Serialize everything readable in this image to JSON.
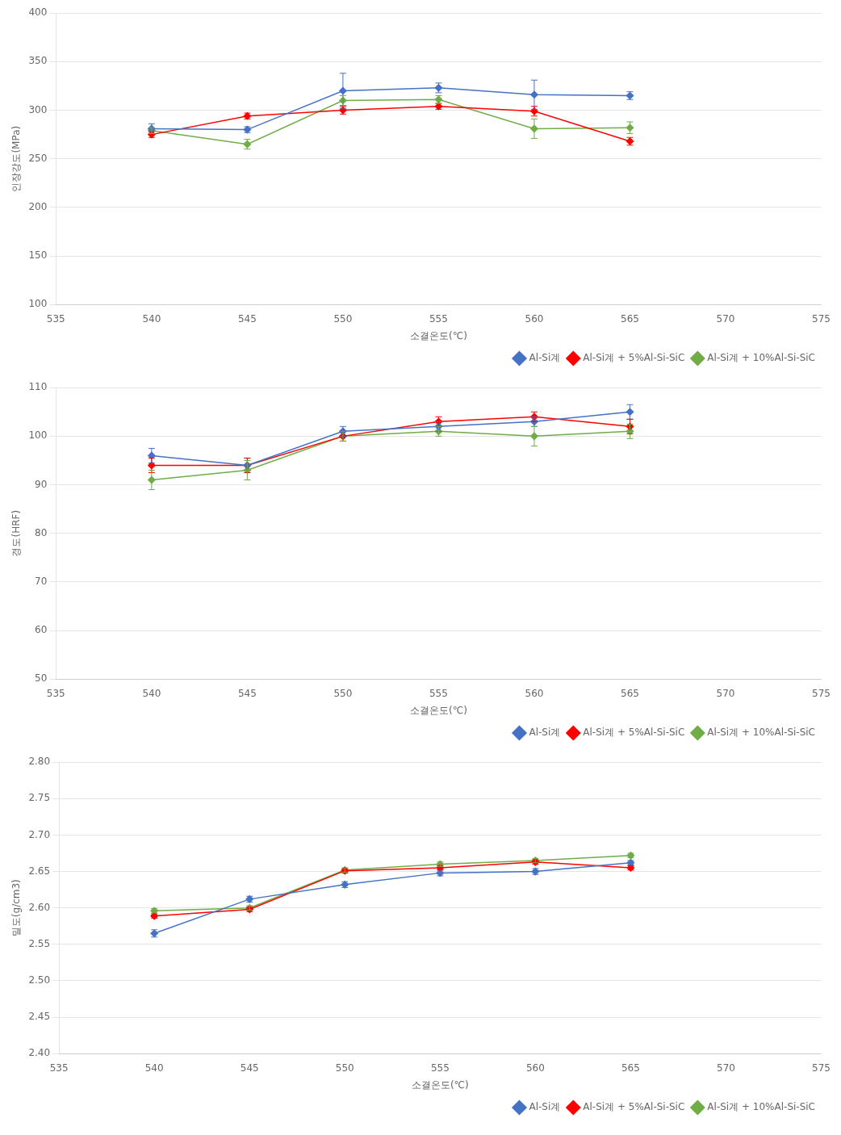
{
  "chart_data": [
    {
      "type": "line",
      "x_label": "소결온도(℃)",
      "y_label": "인장강도(MPa)",
      "x": [
        540,
        545,
        550,
        555,
        560,
        565
      ],
      "series": [
        {
          "name": "Al-Si계",
          "color": "#4472C4",
          "values": [
            281,
            280,
            320,
            323,
            316,
            315
          ],
          "yerr": [
            5,
            3,
            18,
            5,
            15,
            4
          ]
        },
        {
          "name": "Al-Si계 + 5%Al-Si-SiC",
          "color": "#FF0000",
          "values": [
            275,
            294,
            300,
            304,
            299,
            268
          ],
          "yerr": [
            3,
            3,
            4,
            3,
            5,
            4
          ]
        },
        {
          "name": "Al-Si계 + 10%Al-Si-SiC",
          "color": "#70AD47",
          "values": [
            279,
            265,
            310,
            311,
            281,
            282
          ],
          "yerr": [
            3,
            5,
            5,
            4,
            10,
            6
          ]
        }
      ],
      "marker": "diamond",
      "xlim": [
        535,
        575
      ],
      "xticks": [
        535,
        540,
        545,
        550,
        555,
        560,
        565,
        570,
        575
      ],
      "ylim": [
        100,
        400
      ],
      "yticks": [
        100,
        150,
        200,
        250,
        300,
        350,
        400
      ],
      "grid": "y",
      "legend": "lower right"
    },
    {
      "type": "line",
      "x_label": "소결온도(℃)",
      "y_label": "경도(HRF)",
      "x": [
        540,
        545,
        550,
        555,
        560,
        565
      ],
      "series": [
        {
          "name": "Al-Si계",
          "color": "#4472C4",
          "values": [
            96,
            94,
            101,
            102,
            103,
            105
          ],
          "yerr": [
            1.5,
            1.5,
            1,
            1,
            1,
            1.5
          ]
        },
        {
          "name": "Al-Si계 + 5%Al-Si-SiC",
          "color": "#FF0000",
          "values": [
            94,
            94,
            100,
            103,
            104,
            102
          ],
          "yerr": [
            1.5,
            1.5,
            1,
            1,
            1,
            1.5
          ]
        },
        {
          "name": "Al-Si계 + 10%Al-Si-SiC",
          "color": "#70AD47",
          "values": [
            91,
            93,
            100,
            101,
            100,
            101
          ],
          "yerr": [
            2,
            2,
            1,
            1,
            2,
            1.5
          ]
        }
      ],
      "marker": "diamond",
      "xlim": [
        535,
        575
      ],
      "xticks": [
        535,
        540,
        545,
        550,
        555,
        560,
        565,
        570,
        575
      ],
      "ylim": [
        50,
        110
      ],
      "yticks": [
        50,
        60,
        70,
        80,
        90,
        100,
        110
      ],
      "grid": "y",
      "legend": "lower right"
    },
    {
      "type": "line",
      "x_label": "소결온도(℃)",
      "y_label": "밀도(g/cm3)",
      "x": [
        540,
        545,
        550,
        555,
        560,
        565
      ],
      "series": [
        {
          "name": "Al-Si계",
          "color": "#4472C4",
          "values": [
            2.565,
            2.612,
            2.632,
            2.648,
            2.65,
            2.662
          ],
          "yerr": [
            0.005,
            0.004,
            0.004,
            0.004,
            0.004,
            0.003
          ]
        },
        {
          "name": "Al-Si계 + 5%Al-Si-SiC",
          "color": "#FF0000",
          "values": [
            2.589,
            2.598,
            2.651,
            2.655,
            2.663,
            2.655
          ],
          "yerr": [
            0.003,
            0.003,
            0.003,
            0.003,
            0.003,
            0.003
          ]
        },
        {
          "name": "Al-Si계 + 10%Al-Si-SiC",
          "color": "#70AD47",
          "values": [
            2.596,
            2.6,
            2.652,
            2.66,
            2.665,
            2.672
          ],
          "yerr": [
            0.003,
            0.003,
            0.003,
            0.003,
            0.003,
            0.003
          ]
        }
      ],
      "marker": "diamond",
      "xlim": [
        535,
        575
      ],
      "xticks": [
        535,
        540,
        545,
        550,
        555,
        560,
        565,
        570,
        575
      ],
      "ylim": [
        2.4,
        2.8
      ],
      "yticks": [
        {
          "value": 2.4,
          "label": "2.40"
        },
        2.45,
        {
          "value": 2.5,
          "label": "2.50"
        },
        2.55,
        {
          "value": 2.6,
          "label": "2.60"
        },
        2.65,
        {
          "value": 2.7,
          "label": "2.70"
        },
        2.75,
        {
          "value": 2.8,
          "label": "2.80"
        }
      ],
      "grid": "y",
      "legend": "lower right"
    }
  ]
}
